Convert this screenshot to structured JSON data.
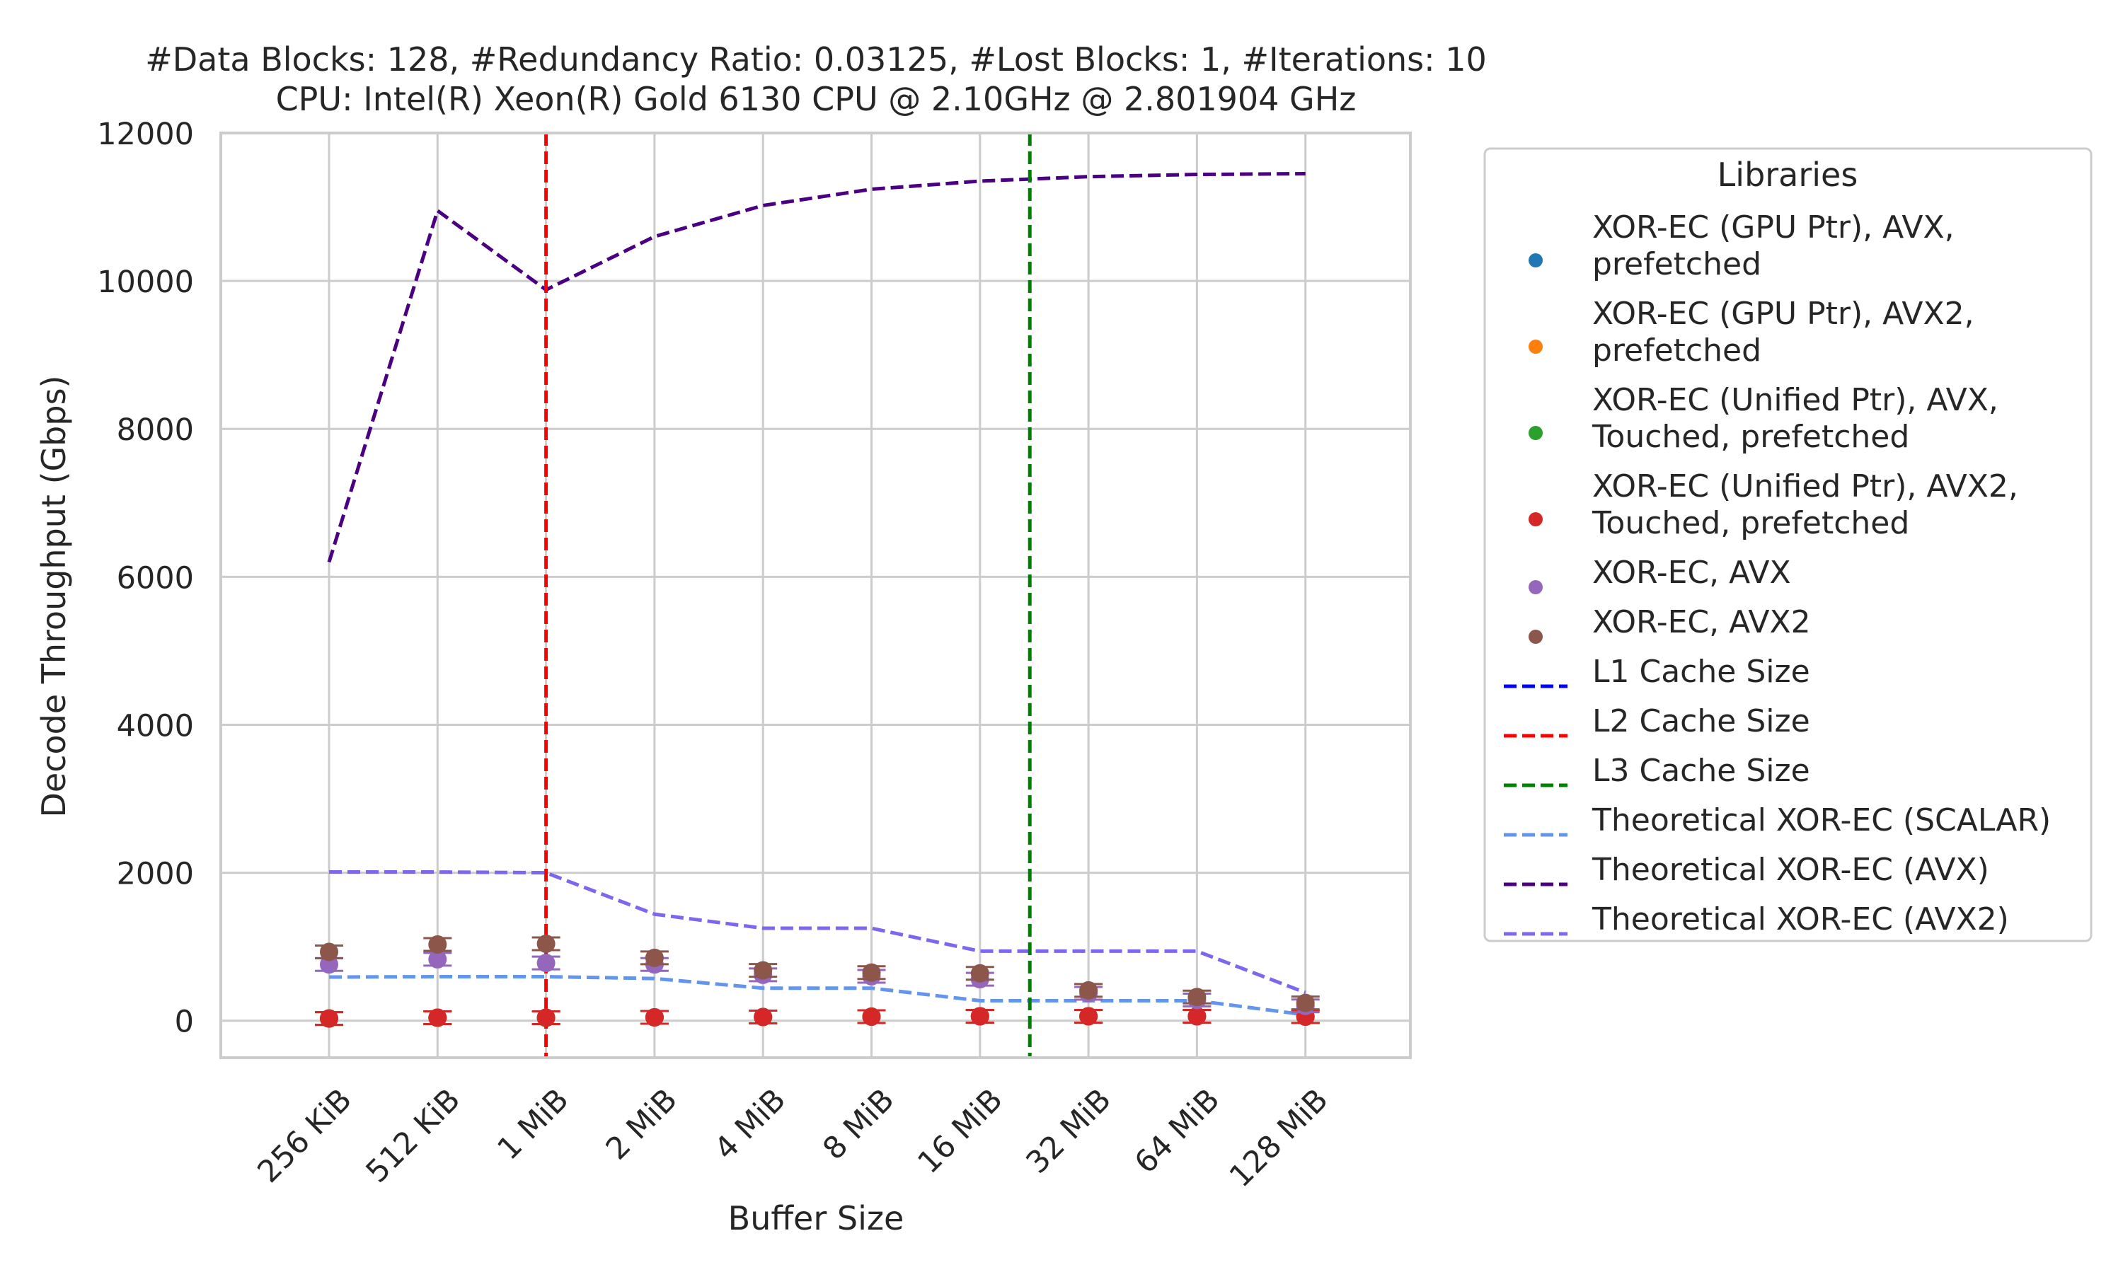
{
  "chart_data": {
    "type": "line",
    "title_line1": "#Data Blocks: 128, #Redundancy Ratio: 0.03125, #Lost Blocks: 1, #Iterations: 10",
    "title_line2": "CPU: Intel(R) Xeon(R) Gold 6130 CPU @ 2.10GHz @ 2.801904 GHz",
    "xlabel": "Buffer Size",
    "ylabel": "Decode Throughput (Gbps)",
    "categories": [
      "256 KiB",
      "512 KiB",
      "1 MiB",
      "2 MiB",
      "4 MiB",
      "8 MiB",
      "16 MiB",
      "32 MiB",
      "64 MiB",
      "128 MiB"
    ],
    "ylim": [
      -500,
      12000
    ],
    "yticks": [
      0,
      2000,
      4000,
      6000,
      8000,
      10000,
      12000
    ],
    "grid": true,
    "legend_title": "Libraries",
    "legend_position": "outside-right",
    "point_series": [
      {
        "name": "XOR-EC (GPU Ptr), AVX, prefetched",
        "legend_lines": [
          "XOR-EC (GPU Ptr), AVX,",
          "prefetched"
        ],
        "color": "#1f77b4",
        "values": [
          30,
          40,
          40,
          45,
          50,
          55,
          60,
          60,
          60,
          55
        ]
      },
      {
        "name": "XOR-EC (GPU Ptr), AVX2, prefetched",
        "legend_lines": [
          "XOR-EC (GPU Ptr), AVX2,",
          "prefetched"
        ],
        "color": "#ff7f0e",
        "values": [
          30,
          40,
          40,
          45,
          50,
          55,
          60,
          60,
          60,
          55
        ]
      },
      {
        "name": "XOR-EC (Unified Ptr), AVX, Touched, prefetched",
        "legend_lines": [
          "XOR-EC (Unified Ptr), AVX,",
          "Touched, prefetched"
        ],
        "color": "#2ca02c",
        "values": [
          30,
          40,
          40,
          45,
          50,
          55,
          60,
          60,
          60,
          55
        ]
      },
      {
        "name": "XOR-EC (Unified Ptr), AVX2, Touched, prefetched",
        "legend_lines": [
          "XOR-EC (Unified Ptr), AVX2,",
          "Touched, prefetched"
        ],
        "color": "#d62728",
        "values": [
          30,
          40,
          40,
          45,
          50,
          55,
          60,
          60,
          60,
          55
        ]
      },
      {
        "name": "XOR-EC, AVX",
        "legend_lines": [
          "XOR-EC, AVX"
        ],
        "color": "#9467bd",
        "values": [
          760,
          830,
          780,
          760,
          620,
          600,
          560,
          370,
          280,
          200
        ]
      },
      {
        "name": "XOR-EC, AVX2",
        "legend_lines": [
          "XOR-EC, AVX2"
        ],
        "color": "#8c564b",
        "values": [
          930,
          1030,
          1040,
          850,
          680,
          650,
          640,
          410,
          320,
          240
        ]
      }
    ],
    "vlines": [
      {
        "name": "L1 Cache Size",
        "color": "#0000ff",
        "x": null
      },
      {
        "name": "L2 Cache Size",
        "color": "#ff0000",
        "x": "1 MiB"
      },
      {
        "name": "L3 Cache Size",
        "color": "#008000",
        "x": "22 MiB"
      }
    ],
    "line_series": [
      {
        "name": "Theoretical XOR-EC (SCALAR)",
        "color": "#6495ed",
        "values": [
          590,
          595,
          595,
          570,
          440,
          440,
          270,
          270,
          270,
          80
        ]
      },
      {
        "name": "Theoretical XOR-EC (AVX)",
        "color": "#4b0082",
        "values": [
          6200,
          10950,
          9880,
          10600,
          11020,
          11240,
          11350,
          11410,
          11440,
          11450
        ]
      },
      {
        "name": "Theoretical XOR-EC (AVX2)",
        "color": "#7b68ee",
        "values": [
          2010,
          2010,
          2000,
          1440,
          1250,
          1250,
          940,
          940,
          940,
          380
        ]
      }
    ]
  }
}
